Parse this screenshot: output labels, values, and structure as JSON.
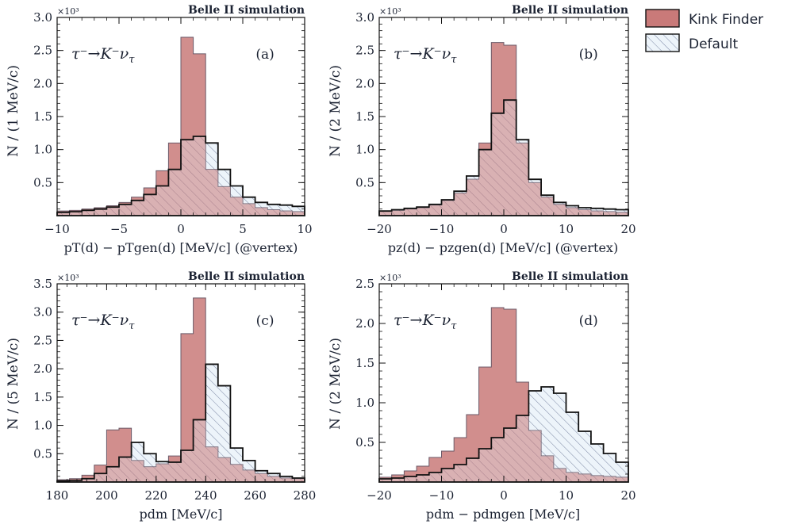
{
  "legend": {
    "kink_label": "Kink Finder",
    "default_label": "Default"
  },
  "colors": {
    "kink_fill": "#c97a79",
    "default_fill": "#edf4fa",
    "hatch": "#7f8aa6",
    "edge": "#111111"
  },
  "chart_data": [
    {
      "id": "a",
      "type": "histogram",
      "panel_tag": "(a)",
      "process": "τ⁻→K⁻ν",
      "process_sub": "τ",
      "experiment_label": "Belle II simulation",
      "multiplier": "×10³",
      "xlabel": "pT(d) − pTgen(d) [MeV/c] (@vertex)",
      "ylabel": "N / (1 MeV/c)",
      "xlim": [
        -10,
        10
      ],
      "ylim": [
        0,
        3000
      ],
      "xticks": [
        -10,
        -5,
        0,
        5,
        10
      ],
      "xtick_labels": [
        "−10",
        "−5",
        "0",
        "5",
        "10"
      ],
      "yticks": [
        500,
        1000,
        1500,
        2000,
        2500,
        3000
      ],
      "ytick_labels": [
        "0.5",
        "1.0",
        "1.5",
        "2.0",
        "2.5",
        "3.0"
      ],
      "bin_edges": [
        -10,
        -9,
        -8,
        -7,
        -6,
        -5,
        -4,
        -3,
        -2,
        -1,
        0,
        1,
        2,
        3,
        4,
        5,
        6,
        7,
        8,
        9,
        10
      ],
      "series": [
        {
          "name": "Kink Finder",
          "values": [
            70,
            80,
            100,
            120,
            150,
            200,
            280,
            420,
            680,
            1100,
            2700,
            2450,
            700,
            440,
            280,
            180,
            120,
            90,
            70,
            60
          ]
        },
        {
          "name": "Default",
          "values": [
            50,
            60,
            80,
            100,
            130,
            170,
            230,
            320,
            450,
            700,
            1150,
            1200,
            1100,
            700,
            450,
            280,
            200,
            170,
            160,
            140
          ]
        }
      ]
    },
    {
      "id": "b",
      "type": "histogram",
      "panel_tag": "(b)",
      "process": "τ⁻→K⁻ν",
      "process_sub": "τ",
      "experiment_label": "Belle II simulation",
      "multiplier": "×10³",
      "xlabel": "pz(d) − pzgen(d) [MeV/c] (@vertex)",
      "ylabel": "N / (2 MeV/c)",
      "xlim": [
        -20,
        20
      ],
      "ylim": [
        0,
        3000
      ],
      "xticks": [
        -20,
        -10,
        0,
        10,
        20
      ],
      "xtick_labels": [
        "−20",
        "−10",
        "0",
        "10",
        "20"
      ],
      "yticks": [
        500,
        1000,
        1500,
        2000,
        2500,
        3000
      ],
      "ytick_labels": [
        "0.5",
        "1.0",
        "1.5",
        "2.0",
        "2.5",
        "3.0"
      ],
      "bin_edges": [
        -20,
        -18,
        -16,
        -14,
        -12,
        -10,
        -8,
        -6,
        -4,
        -2,
        0,
        2,
        4,
        6,
        8,
        10,
        12,
        14,
        16,
        18,
        20
      ],
      "series": [
        {
          "name": "Kink Finder",
          "values": [
            70,
            80,
            100,
            120,
            160,
            230,
            340,
            550,
            1100,
            2620,
            2580,
            1100,
            500,
            280,
            170,
            120,
            90,
            70,
            60,
            50
          ]
        },
        {
          "name": "Default",
          "values": [
            70,
            90,
            110,
            130,
            170,
            240,
            370,
            600,
            1000,
            1550,
            1750,
            1150,
            550,
            310,
            200,
            150,
            120,
            110,
            100,
            90
          ]
        }
      ]
    },
    {
      "id": "c",
      "type": "histogram",
      "panel_tag": "(c)",
      "process": "τ⁻→K⁻ν",
      "process_sub": "τ",
      "experiment_label": "Belle II simulation",
      "multiplier": "×10³",
      "xlabel": "pdm [MeV/c]",
      "ylabel": "N / (5 MeV/c)",
      "xlim": [
        180,
        280
      ],
      "ylim": [
        0,
        3500
      ],
      "xticks": [
        180,
        200,
        220,
        240,
        260,
        280
      ],
      "xtick_labels": [
        "180",
        "200",
        "220",
        "240",
        "260",
        "280"
      ],
      "yticks": [
        500,
        1000,
        1500,
        2000,
        2500,
        3000,
        3500
      ],
      "ytick_labels": [
        "0.5",
        "1.0",
        "1.5",
        "2.0",
        "2.5",
        "3.0",
        "3.5"
      ],
      "bin_edges": [
        180,
        185,
        190,
        195,
        200,
        205,
        210,
        215,
        220,
        225,
        230,
        235,
        240,
        245,
        250,
        255,
        260,
        265,
        270,
        275,
        280
      ],
      "series": [
        {
          "name": "Kink Finder",
          "values": [
            40,
            60,
            120,
            300,
            920,
            950,
            380,
            270,
            320,
            460,
            2620,
            3250,
            620,
            430,
            310,
            210,
            150,
            100,
            70,
            60
          ]
        },
        {
          "name": "Default",
          "values": [
            20,
            30,
            60,
            150,
            270,
            440,
            700,
            500,
            360,
            350,
            560,
            1100,
            2080,
            1700,
            600,
            380,
            200,
            150,
            100,
            70
          ]
        }
      ]
    },
    {
      "id": "d",
      "type": "histogram",
      "panel_tag": "(d)",
      "process": "τ⁻→K⁻ν",
      "process_sub": "τ",
      "experiment_label": "Belle II simulation",
      "multiplier": "×10³",
      "xlabel": "pdm − pdmgen [MeV/c]",
      "ylabel": "N / (2 MeV/c)",
      "xlim": [
        -20,
        20
      ],
      "ylim": [
        0,
        2500
      ],
      "xticks": [
        -20,
        -10,
        0,
        10,
        20
      ],
      "xtick_labels": [
        "−20",
        "−10",
        "0",
        "10",
        "20"
      ],
      "yticks": [
        500,
        1000,
        1500,
        2000,
        2500
      ],
      "ytick_labels": [
        "0.5",
        "1.0",
        "1.5",
        "2.0",
        "2.5"
      ],
      "bin_edges": [
        -20,
        -18,
        -16,
        -14,
        -12,
        -10,
        -8,
        -6,
        -4,
        -2,
        0,
        2,
        4,
        6,
        8,
        10,
        12,
        14,
        16,
        18,
        20
      ],
      "series": [
        {
          "name": "Kink Finder",
          "values": [
            60,
            90,
            140,
            200,
            310,
            390,
            560,
            850,
            1450,
            2200,
            2180,
            1260,
            650,
            330,
            170,
            120,
            100,
            80,
            70,
            60
          ]
        },
        {
          "name": "Default",
          "values": [
            40,
            50,
            70,
            90,
            120,
            170,
            220,
            300,
            420,
            560,
            680,
            840,
            1150,
            1200,
            1120,
            880,
            640,
            480,
            360,
            250
          ]
        }
      ]
    }
  ]
}
